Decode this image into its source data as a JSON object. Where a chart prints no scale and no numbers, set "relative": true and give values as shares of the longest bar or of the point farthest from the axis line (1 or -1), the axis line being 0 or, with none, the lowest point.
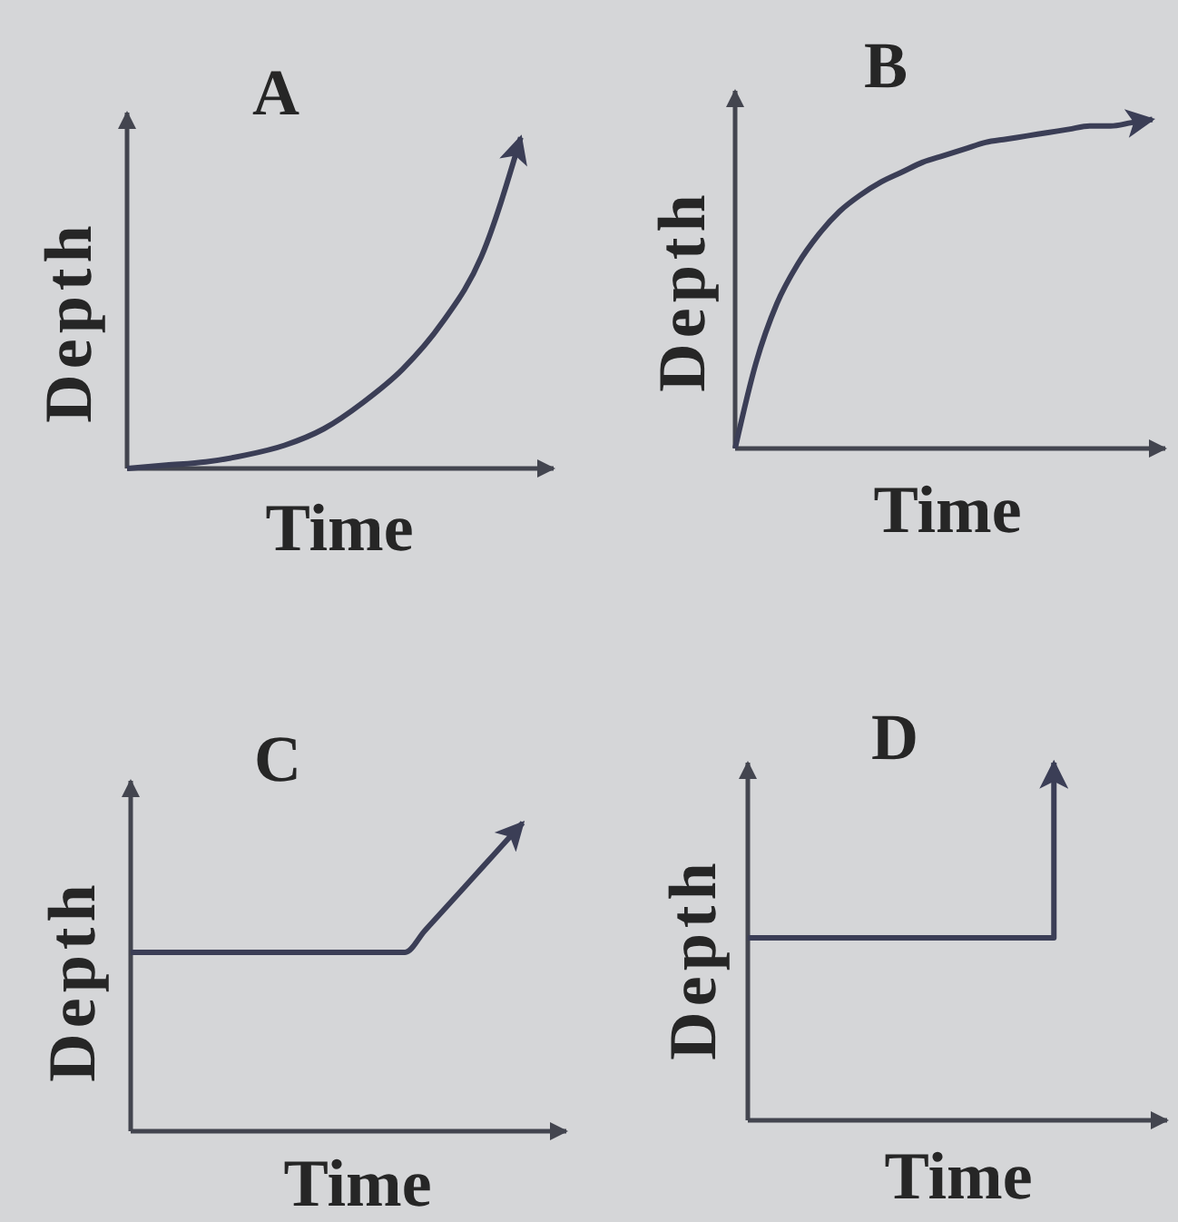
{
  "chart_data": [
    {
      "type": "line",
      "title": "A",
      "xlabel": "Time",
      "ylabel": "Depth",
      "relative": true,
      "categories": [
        null,
        null,
        null,
        null,
        null,
        null,
        null,
        null,
        null,
        null,
        null
      ],
      "values": [
        0,
        0.01,
        0.02,
        0.04,
        0.07,
        0.12,
        0.2,
        0.3,
        0.44,
        0.64,
        1
      ],
      "color": "#3b3e56"
    },
    {
      "type": "line",
      "title": "B",
      "xlabel": "Time",
      "ylabel": "Depth",
      "relative": true,
      "categories": [
        null,
        null,
        null,
        null,
        null,
        null,
        null,
        null,
        null,
        null,
        null,
        null,
        null,
        null,
        null,
        null,
        null,
        null,
        null,
        null,
        null
      ],
      "values": [
        0,
        0.26,
        0.44,
        0.56,
        0.65,
        0.72,
        0.77,
        0.81,
        0.84,
        0.87,
        0.89,
        0.91,
        0.93,
        0.94,
        0.95,
        0.96,
        0.97,
        0.98,
        0.98,
        0.99,
        1
      ],
      "color": "#3b3e56"
    },
    {
      "type": "line",
      "title": "C",
      "xlabel": "Time",
      "ylabel": "Depth",
      "relative": true,
      "categories": [
        null,
        null,
        null,
        null,
        null,
        null,
        null,
        null,
        null,
        null,
        null,
        null,
        null,
        null,
        null,
        null,
        null,
        null,
        null,
        null,
        null
      ],
      "values": [
        0.58,
        0.58,
        0.58,
        0.58,
        0.58,
        0.58,
        0.58,
        0.58,
        0.58,
        0.58,
        0.58,
        0.58,
        0.58,
        0.58,
        0.58,
        0.65,
        0.72,
        0.79,
        0.86,
        0.93,
        1
      ],
      "color": "#3b3e56"
    },
    {
      "type": "step",
      "title": "D",
      "xlabel": "Time",
      "ylabel": "Depth",
      "relative": true,
      "categories": [
        null,
        null
      ],
      "values": [
        0.51,
        1
      ],
      "color": "#3b3e56"
    }
  ]
}
